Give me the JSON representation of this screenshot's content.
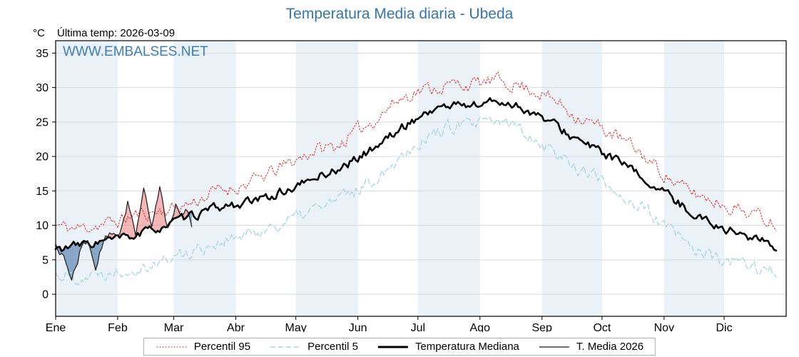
{
  "title": "Temperatura Media diaria - Ubeda",
  "header": {
    "unit_label": "°C",
    "last_temp_label": "Última temp: 2026-03-09"
  },
  "watermark": "WWW.EMBALSES.NET",
  "legend": {
    "items": [
      {
        "label": "Percentil 95",
        "color": "#dd3333",
        "dash": "1.5 2.5",
        "width": 1.2
      },
      {
        "label": "Percentil 5",
        "color": "#a8d5e2",
        "dash": "7 4",
        "width": 1.4
      },
      {
        "label": "Temperatura Mediana",
        "color": "#000000",
        "dash": "",
        "width": 3
      },
      {
        "label": "T. Media 2026",
        "color": "#1a1a1a",
        "dash": "",
        "width": 1.2
      }
    ]
  },
  "chart_data": {
    "type": "line",
    "title": "Temperatura Media diaria - Ubeda",
    "ylabel": "°C",
    "ylim": [
      -3.2,
      36.8
    ],
    "yticks": [
      0,
      5,
      10,
      15,
      20,
      25,
      30,
      35
    ],
    "x_months": [
      "Ene",
      "Feb",
      "Mar",
      "Abr",
      "May",
      "Jun",
      "Jul",
      "Ago",
      "Sep",
      "Oct",
      "Nov",
      "Dic"
    ],
    "month_start_days": [
      0,
      31,
      59,
      90,
      120,
      151,
      181,
      212,
      243,
      273,
      304,
      334
    ],
    "days_in_year": 365,
    "grid": true,
    "stripe_color": "#eaf1f7",
    "grid_color": "#d7dce1",
    "fill_above_color": "rgba(235,110,110,0.5)",
    "fill_below_color": "rgba(80,125,175,0.65)",
    "annotation": "Última temp: 2026-03-09",
    "series": [
      {
        "name": "Percentil 95",
        "color": "#dd3333",
        "dash": "1.5 2.5",
        "width": 1.1,
        "noise": 0.9,
        "seed": 11,
        "x": [
          0,
          10,
          20,
          30,
          40,
          50,
          60,
          70,
          80,
          90,
          100,
          110,
          120,
          130,
          140,
          150,
          160,
          170,
          180,
          190,
          200,
          210,
          220,
          230,
          240,
          250,
          260,
          270,
          280,
          290,
          300,
          310,
          320,
          330,
          340,
          350,
          360
        ],
        "values": [
          10,
          9.5,
          10,
          10.5,
          11.5,
          12,
          12.5,
          13.5,
          15,
          15.5,
          16.5,
          18,
          19.5,
          21,
          21.5,
          23.5,
          25.5,
          28,
          29.5,
          30,
          30.5,
          30.5,
          31,
          30.5,
          29.5,
          28,
          26,
          24.5,
          23,
          21,
          18.5,
          16,
          14.5,
          13.5,
          12.5,
          11.5,
          10.5
        ]
      },
      {
        "name": "Percentil 5",
        "color": "#a8d5e2",
        "dash": "7 4",
        "width": 1.3,
        "noise": 0.9,
        "seed": 22,
        "x": [
          0,
          10,
          20,
          30,
          40,
          50,
          60,
          70,
          80,
          90,
          100,
          110,
          120,
          130,
          140,
          150,
          160,
          170,
          180,
          190,
          200,
          210,
          220,
          230,
          240,
          250,
          260,
          270,
          280,
          290,
          300,
          310,
          320,
          330,
          340,
          350,
          360
        ],
        "values": [
          3,
          2.5,
          3,
          3.5,
          4,
          4.5,
          5.5,
          6.5,
          7.5,
          8,
          9,
          10,
          11,
          12.5,
          13.5,
          15,
          17,
          19.5,
          22,
          23.5,
          24.5,
          24.5,
          25,
          24.5,
          22.5,
          20.5,
          18.5,
          17,
          15,
          13,
          11,
          8.5,
          6.5,
          5,
          4.5,
          4,
          3
        ]
      },
      {
        "name": "Temperatura Mediana",
        "color": "#000000",
        "dash": "",
        "width": 2.6,
        "noise": 0.55,
        "seed": 33,
        "x": [
          0,
          10,
          20,
          30,
          40,
          50,
          60,
          70,
          80,
          90,
          100,
          110,
          120,
          130,
          140,
          150,
          160,
          170,
          180,
          190,
          200,
          210,
          220,
          230,
          240,
          250,
          260,
          270,
          280,
          290,
          300,
          310,
          320,
          330,
          340,
          350,
          360
        ],
        "values": [
          6.5,
          7,
          7.5,
          8,
          8.5,
          9.5,
          10.5,
          11.5,
          12.5,
          13,
          13.5,
          14.5,
          15.5,
          17,
          18,
          19.5,
          21.5,
          23.5,
          25.5,
          27,
          27.5,
          27.5,
          28,
          27.5,
          26,
          24.5,
          22.5,
          21,
          19.5,
          17.5,
          15.5,
          13.5,
          11.5,
          10,
          9,
          8,
          7
        ]
      },
      {
        "name": "T. Media 2026",
        "color": "#1a1a1a",
        "dash": "",
        "width": 1.2,
        "noise": 0.5,
        "seed": 44,
        "x": [
          0,
          4,
          8,
          12,
          16,
          20,
          24,
          28,
          32,
          36,
          40,
          44,
          48,
          52,
          56,
          60,
          64,
          66,
          68
        ],
        "values": [
          7,
          5.5,
          2,
          6,
          8,
          3.5,
          8,
          8.5,
          9,
          13.5,
          9,
          15,
          9.5,
          15.5,
          9.5,
          13,
          11.5,
          12,
          9.5
        ]
      }
    ]
  }
}
